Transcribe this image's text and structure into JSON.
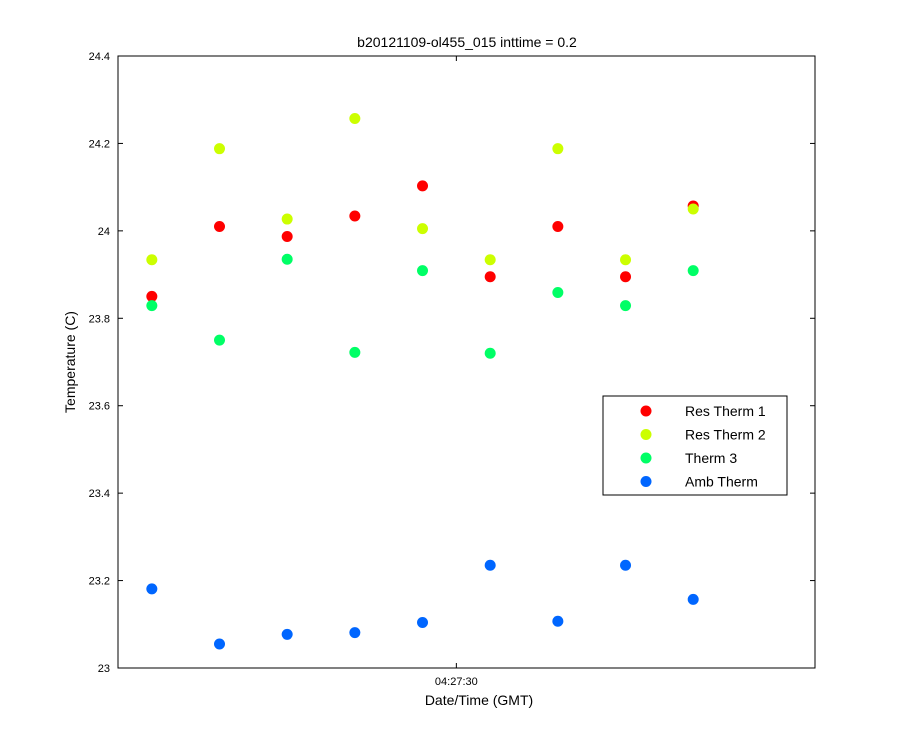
{
  "chart_data": {
    "type": "scatter",
    "title": "b20121109-ol455_015 inttime = 0.2",
    "xlabel": "Date/Time (GMT)",
    "ylabel": "Temperature (C)",
    "ylim": [
      23,
      24.4
    ],
    "yticks": [
      23,
      23.2,
      23.4,
      23.6,
      23.8,
      24,
      24.2,
      24.4
    ],
    "ytick_labels": [
      "23",
      "23.2",
      "23.4",
      "23.6",
      "23.8",
      "24",
      "24.2",
      "24.4"
    ],
    "xlim": [
      0,
      10.3
    ],
    "xticks": [
      5
    ],
    "xtick_labels": [
      "04:27:30"
    ],
    "grid": false,
    "legend_position": "right-middle",
    "x": [
      0.5,
      1.5,
      2.5,
      3.5,
      4.5,
      5.5,
      6.5,
      7.5,
      8.5
    ],
    "series": [
      {
        "name": "Res Therm 1",
        "color": "#ff0000",
        "values": [
          23.85,
          24.01,
          23.987,
          24.034,
          24.103,
          23.895,
          24.01,
          23.895,
          24.057
        ]
      },
      {
        "name": "Res Therm 2",
        "color": "#ccff00",
        "values": [
          23.934,
          24.188,
          24.027,
          24.257,
          24.005,
          23.934,
          24.188,
          23.934,
          24.05
        ]
      },
      {
        "name": "Therm 3",
        "color": "#00ff66",
        "values": [
          23.829,
          23.75,
          23.935,
          23.722,
          23.909,
          23.72,
          23.859,
          23.829,
          23.909
        ]
      },
      {
        "name": "Amb Therm",
        "color": "#0066ff",
        "values": [
          23.181,
          23.055,
          23.077,
          23.081,
          23.104,
          23.235,
          23.107,
          23.235,
          23.157
        ]
      }
    ]
  }
}
